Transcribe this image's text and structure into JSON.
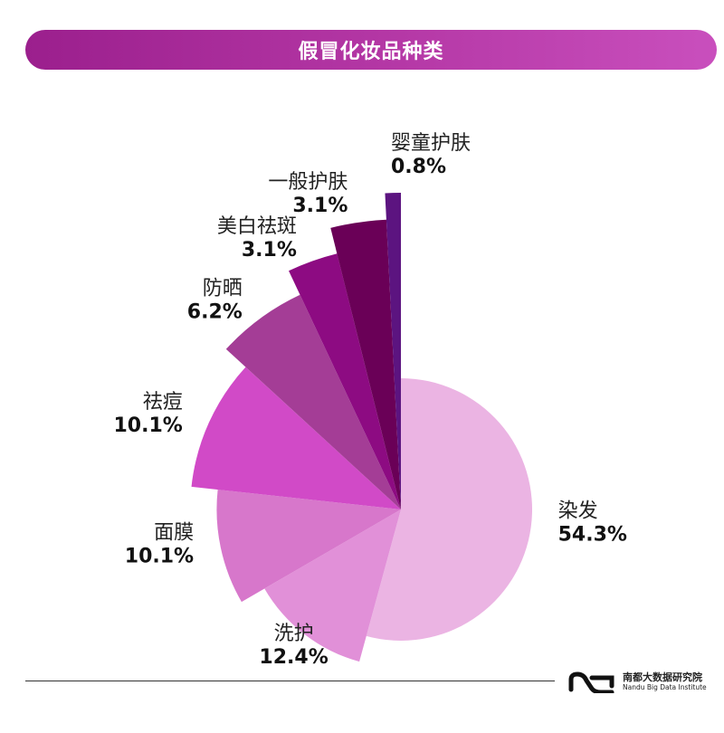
{
  "header": {
    "title": "假冒化妆品种类"
  },
  "chart_data": {
    "type": "pie",
    "variant": "nightingale-rose",
    "title": "假冒化妆品种类",
    "categories": [
      "染发",
      "洗护",
      "面膜",
      "祛痘",
      "防晒",
      "美白祛斑",
      "一般护肤",
      "婴童护肤"
    ],
    "values": [
      54.3,
      12.4,
      10.1,
      10.1,
      6.2,
      3.1,
      3.1,
      0.8
    ],
    "value_labels": [
      "54.3%",
      "12.4%",
      "10.1%",
      "10.1%",
      "6.2%",
      "3.1%",
      "3.1%",
      "0.8%"
    ],
    "colors": [
      "#ebb4e3",
      "#e190d8",
      "#d777cb",
      "#d14ac7",
      "#a43d96",
      "#8d0b82",
      "#6a0057",
      "#5c1480"
    ]
  },
  "footer": {
    "org_cn": "南都大数据研究院",
    "org_en": "Nandu Big Data Institute"
  }
}
